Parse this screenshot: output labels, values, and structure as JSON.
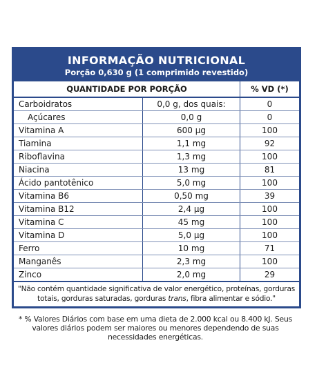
{
  "header": {
    "title": "INFORMAÇÃO NUTRICIONAL",
    "subtitle": "Porção 0,630 g (1 comprimido revestido)"
  },
  "table": {
    "columns": [
      "QUANTIDADE POR PORÇÃO",
      "% VD (*)"
    ],
    "rows": [
      [
        "Carboidratos",
        "0,0 g, dos quais:",
        "0"
      ],
      [
        "Açúcares",
        "0,0 g",
        "0"
      ],
      [
        "Vitamina A",
        "600 µg",
        "100"
      ],
      [
        "Tiamina",
        "1,1 mg",
        "92"
      ],
      [
        "Riboflavina",
        "1,3 mg",
        "100"
      ],
      [
        "Niacina",
        "13 mg",
        "81"
      ],
      [
        "Ácido pantotênico",
        "5,0 mg",
        "100"
      ],
      [
        "Vitamina B6",
        "0,50 mg",
        "39"
      ],
      [
        "Vitamina B12",
        "2,4 µg",
        "100"
      ],
      [
        "Vitamina C",
        "45 mg",
        "100"
      ],
      [
        "Vitamina D",
        "5,0 µg",
        "100"
      ],
      [
        "Ferro",
        "10 mg",
        "71"
      ],
      [
        "Manganês",
        "2,3 mg",
        "100"
      ],
      [
        "Zinco",
        "2,0 mg",
        "29"
      ]
    ],
    "footnote": [
      "\"Não contém quantidade significativa de valor energético, proteínas, gorduras totais, gorduras saturadas, gorduras ",
      "trans",
      ", fibra alimentar e sódio.\""
    ]
  },
  "note": "* % Valores Diários com base em uma dieta de 2.000 kcal ou 8.400 kJ. Seus valores diários podem ser maiores ou menores dependendo de suas necessidades energéticas."
}
